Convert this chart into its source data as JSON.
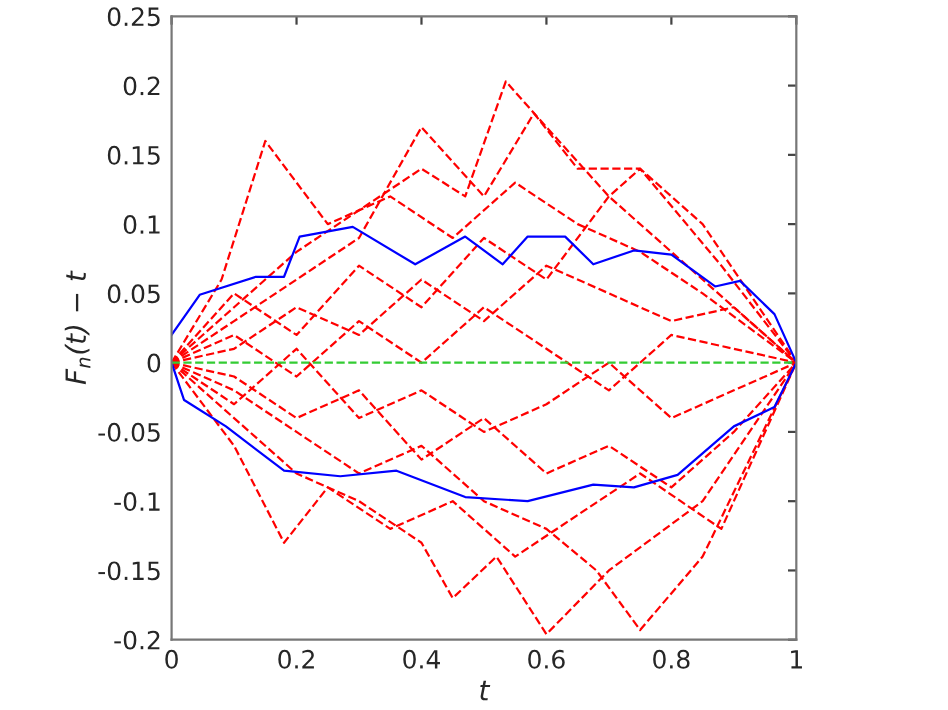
{
  "chart_data": {
    "type": "line",
    "xlabel": "t",
    "ylabel": "F$_{n}$(t) − t",
    "xlim": [
      0,
      1
    ],
    "ylim": [
      -0.2,
      0.25
    ],
    "xticks": [
      0,
      0.2,
      0.4,
      0.6,
      0.8,
      1
    ],
    "yticks": [
      -0.2,
      -0.15,
      -0.1,
      -0.05,
      0,
      0.05,
      0.1,
      0.15,
      0.2,
      0.25
    ],
    "ref_lines": [
      {
        "axis": "y",
        "value": 0,
        "color": "#33cc33",
        "line_style": "dashed"
      }
    ],
    "series": [
      {
        "color": "#ff0000",
        "line_style": "dashed",
        "x": [
          0,
          0.08,
          0.15,
          0.25,
          0.35,
          0.45,
          0.55,
          0.65,
          0.75,
          0.85,
          1
        ],
        "values": [
          0,
          0.06,
          0.16,
          0.1,
          0.12,
          0.09,
          0.13,
          0.1,
          0.08,
          0.05,
          0
        ]
      },
      {
        "color": "#ff0000",
        "line_style": "dashed",
        "x": [
          0,
          0.1,
          0.2,
          0.3,
          0.4,
          0.47,
          0.535,
          0.6,
          0.7,
          0.85,
          1
        ],
        "values": [
          0,
          0.04,
          0.08,
          0.11,
          0.14,
          0.12,
          0.203,
          0.17,
          0.12,
          0.06,
          0
        ]
      },
      {
        "color": "#ff0000",
        "line_style": "dashed",
        "x": [
          0,
          0.1,
          0.2,
          0.3,
          0.4,
          0.5,
          0.58,
          0.65,
          0.75,
          0.88,
          1
        ],
        "values": [
          0,
          0.03,
          0.06,
          0.09,
          0.17,
          0.12,
          0.18,
          0.14,
          0.14,
          0.07,
          0
        ]
      },
      {
        "color": "#ff0000",
        "line_style": "dashed",
        "x": [
          0,
          0.1,
          0.2,
          0.3,
          0.4,
          0.5,
          0.6,
          0.7,
          0.75,
          0.85,
          1
        ],
        "values": [
          0,
          0.05,
          0.02,
          0.07,
          0.04,
          0.09,
          0.06,
          0.12,
          0.14,
          0.1,
          0
        ]
      },
      {
        "color": "#ff0000",
        "line_style": "dashed",
        "x": [
          0,
          0.1,
          0.2,
          0.3,
          0.4,
          0.5,
          0.6,
          0.7,
          0.8,
          0.9,
          1
        ],
        "values": [
          0,
          0.02,
          -0.01,
          0.03,
          0.0,
          0.04,
          0.01,
          -0.02,
          0.02,
          0.01,
          0
        ]
      },
      {
        "color": "#ff0000",
        "line_style": "dashed",
        "x": [
          0,
          0.1,
          0.2,
          0.3,
          0.4,
          0.5,
          0.6,
          0.7,
          0.8,
          0.9,
          1
        ],
        "values": [
          0,
          -0.03,
          0.01,
          -0.04,
          -0.02,
          -0.05,
          -0.03,
          0.0,
          -0.04,
          -0.02,
          0
        ]
      },
      {
        "color": "#ff0000",
        "line_style": "dashed",
        "x": [
          0,
          0.1,
          0.18,
          0.25,
          0.35,
          0.45,
          0.55,
          0.65,
          0.75,
          0.88,
          1
        ],
        "values": [
          0,
          -0.06,
          -0.13,
          -0.09,
          -0.12,
          -0.1,
          -0.14,
          -0.11,
          -0.08,
          -0.12,
          0
        ]
      },
      {
        "color": "#ff0000",
        "line_style": "dashed",
        "x": [
          0,
          0.1,
          0.2,
          0.3,
          0.4,
          0.45,
          0.52,
          0.6,
          0.7,
          0.85,
          1
        ],
        "values": [
          0,
          -0.04,
          -0.08,
          -0.1,
          -0.13,
          -0.17,
          -0.14,
          -0.196,
          -0.15,
          -0.1,
          0
        ]
      },
      {
        "color": "#ff0000",
        "line_style": "dashed",
        "x": [
          0,
          0.1,
          0.2,
          0.3,
          0.4,
          0.5,
          0.6,
          0.68,
          0.75,
          0.85,
          1
        ],
        "values": [
          0,
          -0.02,
          -0.05,
          -0.08,
          -0.06,
          -0.1,
          -0.12,
          -0.15,
          -0.193,
          -0.14,
          0
        ]
      },
      {
        "color": "#ff0000",
        "line_style": "dashed",
        "x": [
          0,
          0.1,
          0.2,
          0.3,
          0.4,
          0.5,
          0.6,
          0.7,
          0.8,
          0.9,
          1
        ],
        "values": [
          0,
          0.01,
          0.04,
          0.02,
          0.06,
          0.03,
          0.07,
          0.05,
          0.03,
          0.04,
          0
        ]
      },
      {
        "color": "#ff0000",
        "line_style": "dashed",
        "x": [
          0,
          0.1,
          0.2,
          0.3,
          0.4,
          0.5,
          0.6,
          0.7,
          0.8,
          0.9,
          1
        ],
        "values": [
          0,
          -0.01,
          -0.04,
          -0.02,
          -0.07,
          -0.04,
          -0.08,
          -0.06,
          -0.09,
          -0.05,
          0
        ]
      },
      {
        "color": "#0000ff",
        "line_style": "solid",
        "x": [
          0,
          0.045,
          0.135,
          0.18,
          0.205,
          0.29,
          0.39,
          0.47,
          0.53,
          0.57,
          0.63,
          0.675,
          0.74,
          0.8,
          0.87,
          0.91,
          0.965,
          1
        ],
        "values": [
          0.02,
          0.049,
          0.062,
          0.062,
          0.091,
          0.098,
          0.071,
          0.091,
          0.071,
          0.091,
          0.091,
          0.071,
          0.081,
          0.078,
          0.055,
          0.059,
          0.035,
          0
        ]
      },
      {
        "color": "#0000ff",
        "line_style": "solid",
        "x": [
          0,
          0.02,
          0.087,
          0.18,
          0.27,
          0.36,
          0.47,
          0.57,
          0.675,
          0.74,
          0.81,
          0.9,
          0.965,
          1
        ],
        "values": [
          0,
          -0.027,
          -0.046,
          -0.078,
          -0.082,
          -0.078,
          -0.097,
          -0.1,
          -0.088,
          -0.09,
          -0.081,
          -0.046,
          -0.032,
          0
        ]
      }
    ]
  }
}
